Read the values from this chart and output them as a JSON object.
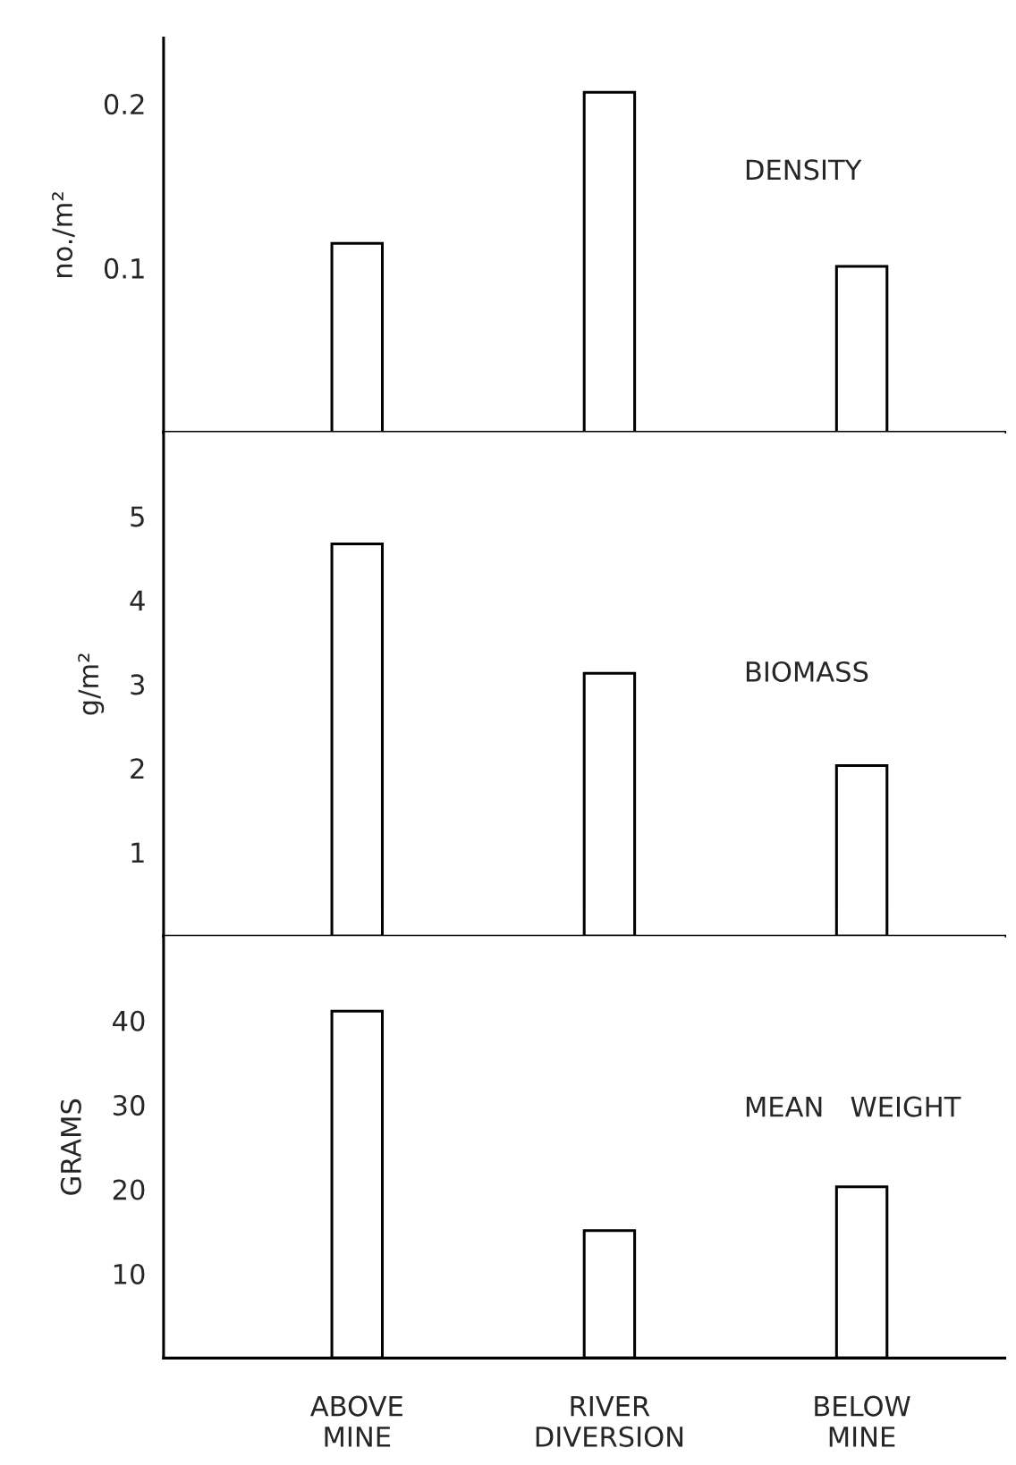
{
  "chart_data": [
    {
      "type": "bar",
      "title": "DENSITY",
      "ylabel": "no./m²",
      "categories": [
        null,
        null,
        null
      ],
      "values": [
        0.115,
        0.207,
        0.101
      ],
      "color": "#ffffff",
      "ylim": [
        0,
        0.24
      ],
      "yticks": [
        0.1,
        0.2
      ],
      "tick_labels": "y",
      "grid": false,
      "legend": false
    },
    {
      "type": "bar",
      "title": "BIOMASS",
      "ylabel": "g/m²",
      "categories": [
        null,
        null,
        null
      ],
      "values": [
        4.67,
        3.13,
        2.03
      ],
      "color": "#ffffff",
      "ylim": [
        0,
        6
      ],
      "yticks": [
        1,
        2,
        3,
        4,
        5
      ],
      "tick_labels": "y",
      "grid": false,
      "legend": false
    },
    {
      "type": "bar",
      "title": "MEAN   WEIGHT",
      "ylabel": "GRAMS",
      "categories": [
        "ABOVE\nMINE",
        "RIVER\nDIVERSION",
        "BELOW\nMINE"
      ],
      "values": [
        41.1,
        15.1,
        20.3
      ],
      "color": "#ffffff",
      "ylim": [
        0,
        50
      ],
      "yticks": [
        10,
        20,
        30,
        40
      ],
      "grid": false,
      "legend": false
    }
  ]
}
